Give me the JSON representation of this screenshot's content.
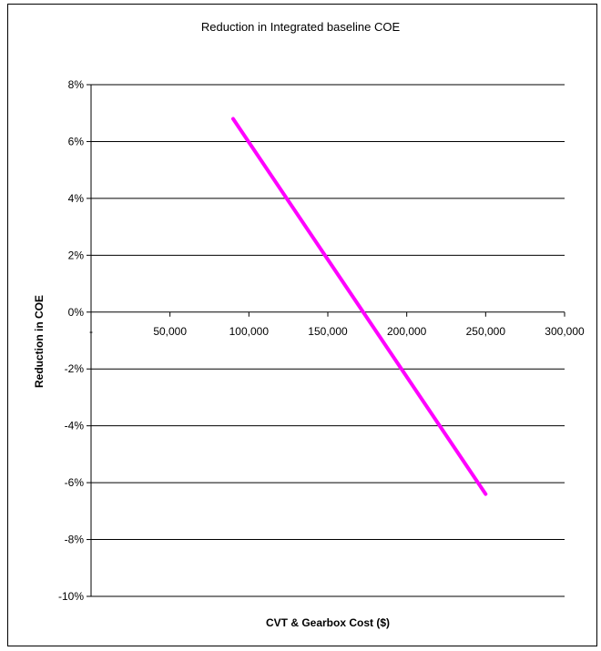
{
  "chart_data": {
    "type": "line",
    "title": "Reduction in Integrated  baseline COE",
    "xlabel": "CVT & Gearbox Cost ($)",
    "ylabel": "Reduction in COE",
    "xlim": [
      0,
      300000
    ],
    "ylim": [
      -0.1,
      0.08
    ],
    "x_ticks": [
      0,
      50000,
      100000,
      150000,
      200000,
      250000,
      300000
    ],
    "x_tick_labels": [
      "-",
      "50,000",
      "100,000",
      "150,000",
      "200,000",
      "250,000",
      "300,000"
    ],
    "y_ticks": [
      0.08,
      0.06,
      0.04,
      0.02,
      0,
      -0.02,
      -0.04,
      -0.06,
      -0.08,
      -0.1
    ],
    "y_tick_labels": [
      "8%",
      "6%",
      "4%",
      "2%",
      "0%",
      "-2%",
      "-4%",
      "-6%",
      "-8%",
      "-10%"
    ],
    "grid": true,
    "legend": "none",
    "series": [
      {
        "x": [
          90000,
          250000
        ],
        "y": [
          0.068,
          -0.064
        ],
        "color": "#ff00ff"
      }
    ]
  }
}
